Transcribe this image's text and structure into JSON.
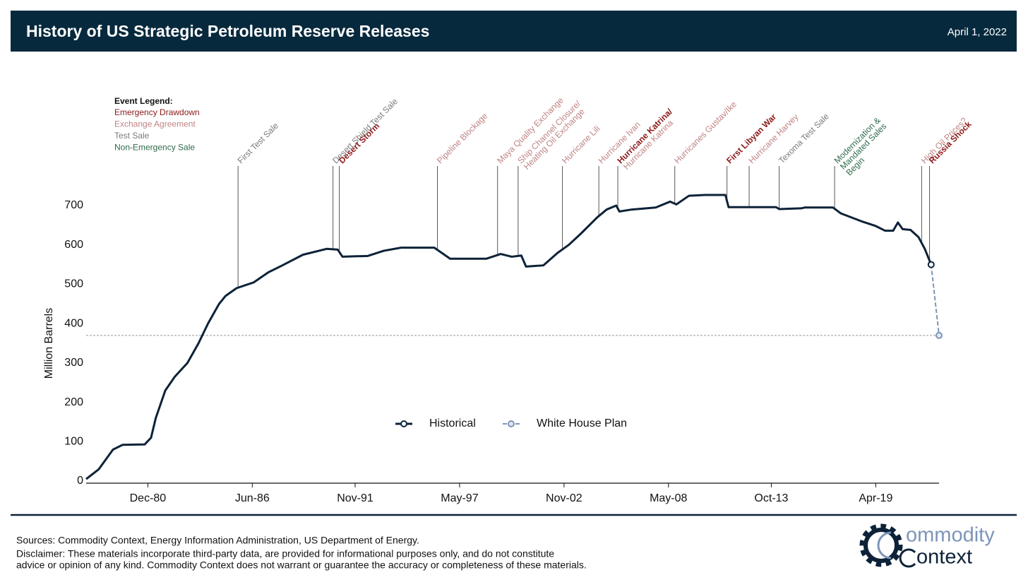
{
  "header": {
    "title": "History of US Strategic Petroleum Reserve Releases",
    "date": "April 1, 2022"
  },
  "chart_data": {
    "type": "line",
    "ylabel": "Million Barrels",
    "xlim": [
      "1977-09",
      "2022-08"
    ],
    "ylim": [
      0,
      700
    ],
    "yticks": [
      0,
      100,
      200,
      300,
      400,
      500,
      600,
      700
    ],
    "xticks": [
      {
        "value": "1980-12",
        "label": "Dec-80"
      },
      {
        "value": "1986-06",
        "label": "Jun-86"
      },
      {
        "value": "1991-11",
        "label": "Nov-91"
      },
      {
        "value": "1997-05",
        "label": "May-97"
      },
      {
        "value": "2002-11",
        "label": "Nov-02"
      },
      {
        "value": "2008-05",
        "label": "May-08"
      },
      {
        "value": "2013-10",
        "label": "Oct-13"
      },
      {
        "value": "2019-04",
        "label": "Apr-19"
      }
    ],
    "reference_line": 370,
    "series": [
      {
        "name": "Historical",
        "color": "#0d2238",
        "x": [
          "1977-09",
          "1978-05",
          "1979-02",
          "1979-08",
          "1980-10",
          "1981-02",
          "1981-05",
          "1981-11",
          "1982-05",
          "1983-01",
          "1983-08",
          "1984-02",
          "1984-09",
          "1985-01",
          "1985-08",
          "1986-07",
          "1987-04",
          "1988-01",
          "1989-02",
          "1990-05",
          "1990-12",
          "1991-03",
          "1992-07",
          "1993-05",
          "1994-04",
          "1996-01",
          "1996-11",
          "1998-10",
          "1999-07",
          "2000-02",
          "2000-08",
          "2000-11",
          "2001-10",
          "2002-07",
          "2003-02",
          "2003-10",
          "2004-08",
          "2005-02",
          "2005-08",
          "2005-10",
          "2006-06",
          "2007-09",
          "2008-06",
          "2008-10",
          "2009-06",
          "2010-04",
          "2011-05",
          "2011-07",
          "2014-01",
          "2014-03",
          "2015-05",
          "2015-07",
          "2017-01",
          "2017-06",
          "2018-07",
          "2019-04",
          "2019-10",
          "2020-03",
          "2020-06",
          "2020-09",
          "2021-02",
          "2021-07",
          "2021-11",
          "2022-03"
        ],
        "values": [
          5,
          30,
          80,
          92,
          93,
          110,
          160,
          230,
          265,
          300,
          350,
          400,
          450,
          470,
          490,
          505,
          530,
          548,
          575,
          590,
          588,
          570,
          572,
          585,
          593,
          593,
          565,
          565,
          577,
          570,
          573,
          545,
          548,
          580,
          600,
          630,
          670,
          690,
          700,
          685,
          690,
          695,
          710,
          703,
          725,
          727,
          727,
          696,
          696,
          691,
          693,
          695,
          695,
          680,
          660,
          648,
          636,
          636,
          657,
          640,
          638,
          620,
          590,
          550
        ]
      },
      {
        "name": "White House Plan",
        "color": "#7d95b8",
        "dashed": true,
        "x": [
          "2022-03",
          "2022-08"
        ],
        "values": [
          550,
          370
        ]
      }
    ],
    "event_legend": {
      "title": "Event Legend:",
      "kinds": [
        {
          "name": "Emergency Drawdown",
          "color": "#8b1a1a"
        },
        {
          "name": "Exchange Agreement",
          "color": "#c08383"
        },
        {
          "name": "Test Sale",
          "color": "#7a7a7a"
        },
        {
          "name": "Non-Emergency Sale",
          "color": "#2e6b4a"
        }
      ]
    },
    "events": [
      {
        "date": "1985-09",
        "lines": [
          {
            "text": "First Test Sale",
            "kind": 2
          }
        ]
      },
      {
        "date": "1990-09",
        "lines": [
          {
            "text": "Desert Shield Test Sale",
            "kind": 2
          }
        ]
      },
      {
        "date": "1991-01",
        "lines": [
          {
            "text": "Desert Storm",
            "kind": 0
          }
        ]
      },
      {
        "date": "1996-03",
        "lines": [
          {
            "text": "Pipeline Blockage",
            "kind": 1
          }
        ]
      },
      {
        "date": "1999-05",
        "lines": [
          {
            "text": "Maya Quality Exchange",
            "kind": 1
          }
        ]
      },
      {
        "date": "2000-06",
        "lines": [
          {
            "text": "Ship Channel Closure/",
            "kind": 1
          },
          {
            "text": "Heating Oil Exchange",
            "kind": 1
          }
        ]
      },
      {
        "date": "2002-10",
        "lines": [
          {
            "text": "Hurricane Lili",
            "kind": 1
          }
        ]
      },
      {
        "date": "2004-09",
        "lines": [
          {
            "text": "Hurricane Ivan",
            "kind": 1
          }
        ]
      },
      {
        "date": "2005-09",
        "lines": [
          {
            "text": "Hurricane Katrina/",
            "kind": 0
          },
          {
            "text": "Hurricane Katrina",
            "kind": 1
          }
        ]
      },
      {
        "date": "2008-09",
        "lines": [
          {
            "text": "Hurricanes Gustav/Ike",
            "kind": 1
          }
        ]
      },
      {
        "date": "2011-06",
        "lines": [
          {
            "text": "First Libyan War",
            "kind": 0
          }
        ]
      },
      {
        "date": "2012-08",
        "lines": [
          {
            "text": "Hurricane Harvey",
            "kind": 1
          }
        ]
      },
      {
        "date": "2014-03",
        "lines": [
          {
            "text": "Texoma Test Sale",
            "kind": 2
          }
        ]
      },
      {
        "date": "2017-02",
        "lines": [
          {
            "text": "Modernization &",
            "kind": 3
          },
          {
            "text": "Mandated Sales",
            "kind": 3
          },
          {
            "text": "Begin",
            "kind": 3
          }
        ]
      },
      {
        "date": "2021-09",
        "lines": [
          {
            "text": "High Oil Prices?",
            "kind": 1
          }
        ]
      },
      {
        "date": "2022-02",
        "lines": [
          {
            "text": "Russia Shock",
            "kind": 0
          }
        ]
      }
    ]
  },
  "footer": {
    "sources": "Sources: Commodity Context, Energy Information Administration, US Department of Energy.",
    "disclaimer": [
      "Disclaimer: These materials incorporate third-party data, are provided for informational purposes only, and do not constitute",
      "advice or opinion of any kind. Commodity Context does not warrant or guarantee the accuracy or completeness of these materials."
    ]
  },
  "logo": [
    "ommodity",
    "ontext"
  ]
}
